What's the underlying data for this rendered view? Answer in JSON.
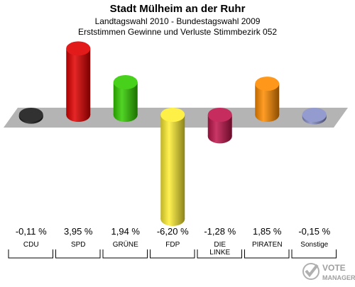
{
  "header": {
    "title": "Stadt Mülheim an der Ruhr",
    "subtitle1": "Landtagswahl 2010 - Bundestagswahl 2009",
    "subtitle2": "Erststimmen Gewinne und Verluste Stimmbezirk 052"
  },
  "chart_data": {
    "type": "bar",
    "categories": [
      "CDU",
      "SPD",
      "GRÜNE",
      "FDP",
      "DIE LINKE",
      "PIRATEN",
      "Sonstige"
    ],
    "values": [
      -0.11,
      3.95,
      1.94,
      -6.2,
      -1.28,
      1.85,
      -0.15
    ],
    "value_labels": [
      "-0,11 %",
      "3,95 %",
      "1,94 %",
      "-6,20 %",
      "-1,28 %",
      "1,85 %",
      "-0,15 %"
    ],
    "colors": [
      "#1a1a1a",
      "#e00000",
      "#33cc00",
      "#ffee33",
      "#c0144c",
      "#ff8c00",
      "#8890c8"
    ],
    "title": "Stadt Mülheim an der Ruhr",
    "ylabel": "",
    "xlabel": "",
    "grid": false
  },
  "logo": {
    "text_line1": "VOTE",
    "text_line2": "MANAGER"
  }
}
